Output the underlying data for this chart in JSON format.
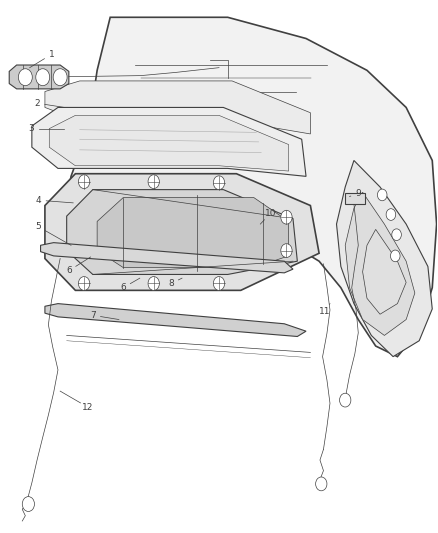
{
  "background_color": "#ffffff",
  "line_color": "#404040",
  "figsize": [
    4.38,
    5.33
  ],
  "dpi": 100
}
